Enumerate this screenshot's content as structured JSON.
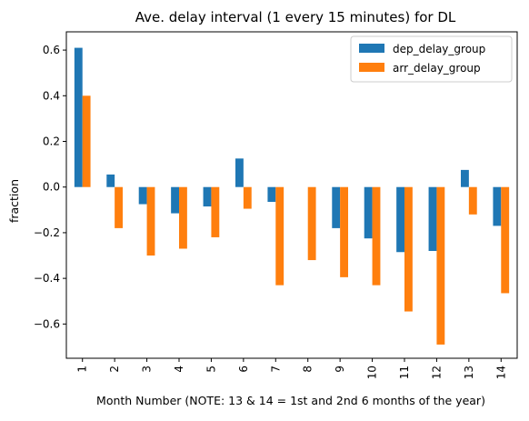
{
  "chart_data": {
    "type": "bar",
    "title": "Ave. delay interval (1 every 15 minutes) for DL",
    "xlabel": "Month Number (NOTE: 13 & 14 = 1st and 2nd 6 months of the year)",
    "ylabel": "fraction",
    "categories": [
      "1",
      "2",
      "3",
      "4",
      "5",
      "6",
      "7",
      "8",
      "9",
      "10",
      "11",
      "12",
      "13",
      "14"
    ],
    "series": [
      {
        "name": "dep_delay_group",
        "color": "#1f77b4",
        "values": [
          0.61,
          0.055,
          -0.075,
          -0.115,
          -0.085,
          0.125,
          -0.065,
          0.0,
          -0.18,
          -0.225,
          -0.285,
          -0.28,
          0.075,
          -0.17
        ]
      },
      {
        "name": "arr_delay_group",
        "color": "#ff7f0e",
        "values": [
          0.4,
          -0.18,
          -0.3,
          -0.27,
          -0.22,
          -0.095,
          -0.43,
          -0.32,
          -0.395,
          -0.43,
          -0.545,
          -0.69,
          -0.12,
          -0.465
        ]
      }
    ],
    "ylim": [
      -0.75,
      0.68
    ],
    "yticks": [
      -0.6,
      -0.4,
      -0.2,
      0.0,
      0.2,
      0.4,
      0.6
    ],
    "ytick_labels": [
      "−0.6",
      "−0.4",
      "−0.2",
      "0.0",
      "0.2",
      "0.4",
      "0.6"
    ],
    "legend_position": "top-right",
    "grid": false
  }
}
